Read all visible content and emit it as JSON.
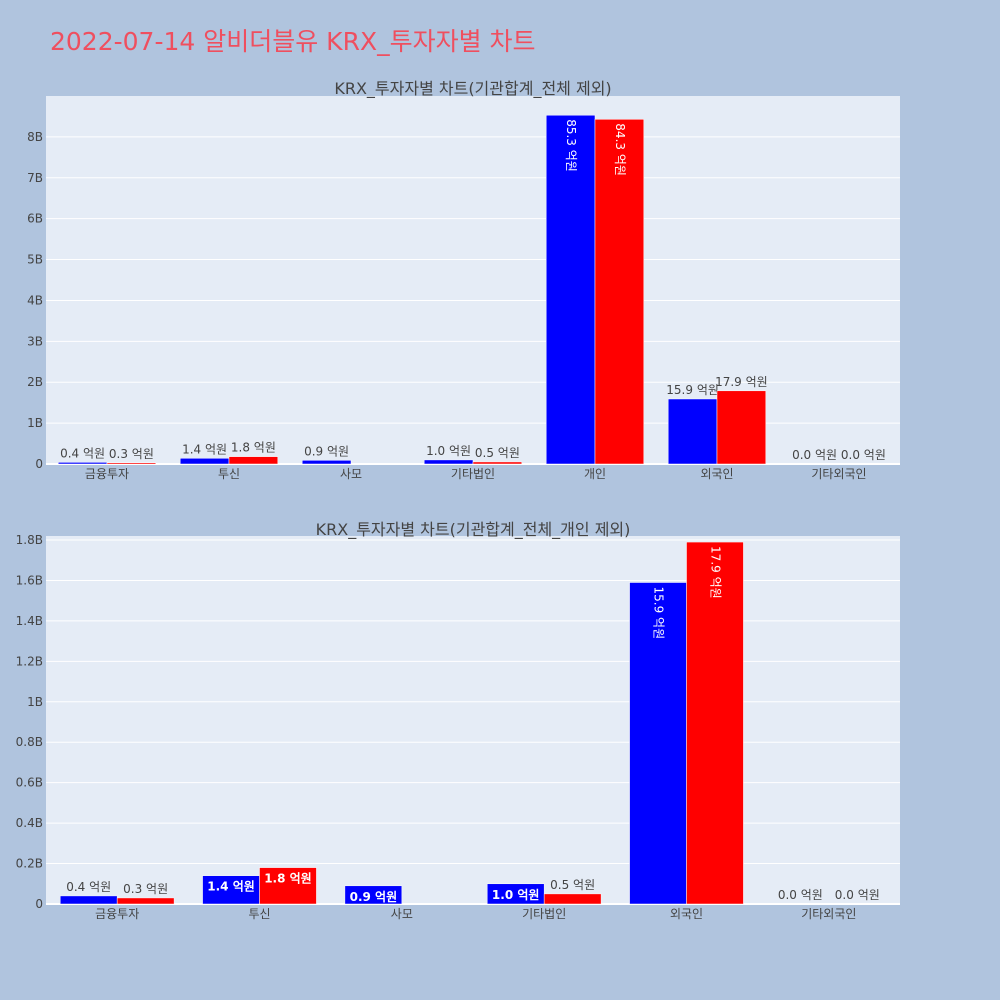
{
  "page": {
    "title": "2022-07-14 알비더블유 KRX_투자자별 차트"
  },
  "colors": {
    "page_background": "#b0c4de",
    "plot_background": "#e5ecf6",
    "series_a": "#0000ff",
    "series_b": "#ff0000",
    "title_color": "#ef4f5f",
    "text_color": "#444444"
  },
  "chart_data": [
    {
      "type": "bar",
      "title": "KRX_투자자별 차트(기관합계_전체 제외)",
      "categories": [
        "금융투자",
        "투신",
        "사모",
        "기타법인",
        "개인",
        "외국인",
        "기타외국인"
      ],
      "series": [
        {
          "values": [
            40000000,
            140000000,
            90000000,
            100000000,
            8530000000,
            1590000000,
            0
          ],
          "labels": [
            "0.4 억원",
            "1.4 억원",
            "0.9 억원",
            "1.0 억원",
            "85.3 억원",
            "15.9 억원",
            "0.0 억원"
          ]
        },
        {
          "values": [
            30000000,
            180000000,
            0,
            50000000,
            8430000000,
            1790000000,
            0
          ],
          "labels": [
            "0.3 억원",
            "1.8 억원",
            "",
            "0.5 억원",
            "84.3 억원",
            "17.9 억원",
            "0.0 억원"
          ]
        }
      ],
      "ylim": [
        0,
        9000000000
      ],
      "yticks": [
        0,
        1000000000,
        2000000000,
        3000000000,
        4000000000,
        5000000000,
        6000000000,
        7000000000,
        8000000000
      ],
      "ytick_labels": [
        "0",
        "1B",
        "2B",
        "3B",
        "4B",
        "5B",
        "6B",
        "7B",
        "8B"
      ],
      "grid": true,
      "xlabel": "",
      "ylabel": ""
    },
    {
      "type": "bar",
      "title": "KRX_투자자별 차트(기관합계_전체_개인 제외)",
      "categories": [
        "금융투자",
        "투신",
        "사모",
        "기타법인",
        "외국인",
        "기타외국인"
      ],
      "series": [
        {
          "values": [
            40000000,
            140000000,
            90000000,
            100000000,
            1590000000,
            0
          ],
          "labels": [
            "0.4 억원",
            "1.4 억원",
            "0.9 억원",
            "1.0 억원",
            "15.9 억원",
            "0.0 억원"
          ]
        },
        {
          "values": [
            30000000,
            180000000,
            0,
            50000000,
            1790000000,
            0
          ],
          "labels": [
            "0.3 억원",
            "1.8 억원",
            "",
            "0.5 억원",
            "17.9 억원",
            "0.0 억원"
          ]
        }
      ],
      "ylim": [
        0,
        1820000000
      ],
      "yticks": [
        0,
        200000000,
        400000000,
        600000000,
        800000000,
        1000000000,
        1200000000,
        1400000000,
        1600000000,
        1800000000
      ],
      "ytick_labels": [
        "0",
        "0.2B",
        "0.4B",
        "0.6B",
        "0.8B",
        "1B",
        "1.2B",
        "1.4B",
        "1.6B",
        "1.8B"
      ],
      "grid": true,
      "xlabel": "",
      "ylabel": ""
    }
  ]
}
